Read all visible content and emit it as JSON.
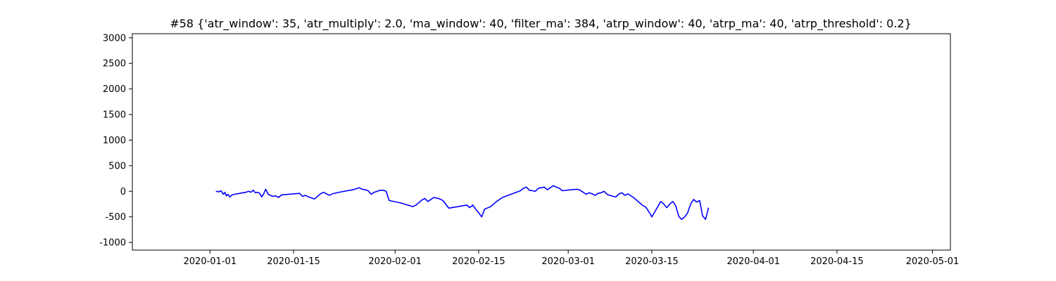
{
  "chart_data": {
    "type": "line",
    "title": "#58 {'atr_window': 35, 'atr_multiply': 2.0, 'ma_window': 40, 'filter_ma': 384, 'atrp_window': 40, 'atrp_ma': 40, 'atrp_threshold': 0.2}",
    "xlabel": "",
    "ylabel": "",
    "x_axis": "date",
    "xlim": [
      "2019-12-19",
      "2020-05-04"
    ],
    "ylim": [
      -1150,
      3080
    ],
    "x_ticks": [
      "2020-01-01",
      "2020-01-15",
      "2020-02-01",
      "2020-02-15",
      "2020-03-01",
      "2020-03-15",
      "2020-04-01",
      "2020-04-15",
      "2020-05-01"
    ],
    "y_ticks": [
      -1000,
      -500,
      0,
      500,
      1000,
      1500,
      2000,
      2500,
      3000
    ],
    "grid": false,
    "legend": "none",
    "series": [
      {
        "color": "#0000ff",
        "points": [
          [
            "2020-01-02T00:00",
            0
          ],
          [
            "2020-01-02T12:00",
            -10
          ],
          [
            "2020-01-02T20:00",
            10
          ],
          [
            "2020-01-03T06:00",
            -60
          ],
          [
            "2020-01-03T12:00",
            -20
          ],
          [
            "2020-01-03T18:00",
            -90
          ],
          [
            "2020-01-04T00:00",
            -60
          ],
          [
            "2020-01-04T08:00",
            -110
          ],
          [
            "2020-01-04T16:00",
            -70
          ],
          [
            "2020-01-06T00:00",
            -40
          ],
          [
            "2020-01-07T00:00",
            -20
          ],
          [
            "2020-01-07T12:00",
            0
          ],
          [
            "2020-01-07T20:00",
            -20
          ],
          [
            "2020-01-08T06:00",
            20
          ],
          [
            "2020-01-08T14:00",
            -30
          ],
          [
            "2020-01-09T00:00",
            -20
          ],
          [
            "2020-01-09T08:00",
            -40
          ],
          [
            "2020-01-09T16:00",
            -110
          ],
          [
            "2020-01-10T00:00",
            -50
          ],
          [
            "2020-01-10T08:00",
            40
          ],
          [
            "2020-01-10T18:00",
            -60
          ],
          [
            "2020-01-11T12:00",
            -100
          ],
          [
            "2020-01-12T00:00",
            -90
          ],
          [
            "2020-01-12T12:00",
            -120
          ],
          [
            "2020-01-13T00:00",
            -70
          ],
          [
            "2020-01-15T00:00",
            -50
          ],
          [
            "2020-01-16T00:00",
            -40
          ],
          [
            "2020-01-16T12:00",
            -100
          ],
          [
            "2020-01-17T00:00",
            -80
          ],
          [
            "2020-01-17T12:00",
            -110
          ],
          [
            "2020-01-18T12:00",
            -150
          ],
          [
            "2020-01-19T12:00",
            -50
          ],
          [
            "2020-01-20T00:00",
            -20
          ],
          [
            "2020-01-20T12:00",
            -50
          ],
          [
            "2020-01-21T00:00",
            -80
          ],
          [
            "2020-01-21T12:00",
            -50
          ],
          [
            "2020-01-23T00:00",
            -10
          ],
          [
            "2020-01-25T00:00",
            30
          ],
          [
            "2020-01-26T00:00",
            70
          ],
          [
            "2020-01-26T12:00",
            40
          ],
          [
            "2020-01-27T00:00",
            30
          ],
          [
            "2020-01-27T12:00",
            10
          ],
          [
            "2020-01-28T00:00",
            -60
          ],
          [
            "2020-01-28T12:00",
            -20
          ],
          [
            "2020-01-29T00:00",
            0
          ],
          [
            "2020-01-29T12:00",
            20
          ],
          [
            "2020-01-30T00:00",
            20
          ],
          [
            "2020-01-30T12:00",
            0
          ],
          [
            "2020-01-31T00:00",
            -180
          ],
          [
            "2020-02-02T00:00",
            -230
          ],
          [
            "2020-02-04T00:00",
            -300
          ],
          [
            "2020-02-04T12:00",
            -270
          ],
          [
            "2020-02-05T00:00",
            -220
          ],
          [
            "2020-02-05T12:00",
            -170
          ],
          [
            "2020-02-06T00:00",
            -140
          ],
          [
            "2020-02-06T12:00",
            -200
          ],
          [
            "2020-02-07T00:00",
            -160
          ],
          [
            "2020-02-07T12:00",
            -120
          ],
          [
            "2020-02-08T12:00",
            -150
          ],
          [
            "2020-02-09T00:00",
            -180
          ],
          [
            "2020-02-10T00:00",
            -330
          ],
          [
            "2020-02-13T00:00",
            -270
          ],
          [
            "2020-02-13T12:00",
            -320
          ],
          [
            "2020-02-14T00:00",
            -270
          ],
          [
            "2020-02-14T12:00",
            -350
          ],
          [
            "2020-02-15T00:00",
            -420
          ],
          [
            "2020-02-15T12:00",
            -500
          ],
          [
            "2020-02-16T00:00",
            -350
          ],
          [
            "2020-02-17T00:00",
            -300
          ],
          [
            "2020-02-18T00:00",
            -200
          ],
          [
            "2020-02-19T00:00",
            -120
          ],
          [
            "2020-02-22T00:00",
            10
          ],
          [
            "2020-02-22T12:00",
            60
          ],
          [
            "2020-02-23T00:00",
            80
          ],
          [
            "2020-02-23T12:00",
            20
          ],
          [
            "2020-02-24T00:00",
            10
          ],
          [
            "2020-02-24T12:00",
            0
          ],
          [
            "2020-02-25T00:00",
            60
          ],
          [
            "2020-02-26T00:00",
            80
          ],
          [
            "2020-02-26T12:00",
            30
          ],
          [
            "2020-02-27T00:00",
            70
          ],
          [
            "2020-02-27T12:00",
            110
          ],
          [
            "2020-02-28T00:00",
            80
          ],
          [
            "2020-02-28T12:00",
            60
          ],
          [
            "2020-02-29T00:00",
            10
          ],
          [
            "2020-03-01T12:00",
            30
          ],
          [
            "2020-03-02T12:00",
            40
          ],
          [
            "2020-03-03T00:00",
            20
          ],
          [
            "2020-03-03T12:00",
            -20
          ],
          [
            "2020-03-04T00:00",
            -60
          ],
          [
            "2020-03-04T12:00",
            -30
          ],
          [
            "2020-03-05T00:00",
            -50
          ],
          [
            "2020-03-05T12:00",
            -80
          ],
          [
            "2020-03-06T00:00",
            -40
          ],
          [
            "2020-03-06T12:00",
            -30
          ],
          [
            "2020-03-07T00:00",
            0
          ],
          [
            "2020-03-07T12:00",
            -60
          ],
          [
            "2020-03-08T00:00",
            -80
          ],
          [
            "2020-03-08T12:00",
            -100
          ],
          [
            "2020-03-09T00:00",
            -110
          ],
          [
            "2020-03-09T12:00",
            -50
          ],
          [
            "2020-03-10T00:00",
            -30
          ],
          [
            "2020-03-10T12:00",
            -80
          ],
          [
            "2020-03-11T00:00",
            -50
          ],
          [
            "2020-03-12T00:00",
            -130
          ],
          [
            "2020-03-12T12:00",
            -180
          ],
          [
            "2020-03-13T00:00",
            -230
          ],
          [
            "2020-03-13T12:00",
            -280
          ],
          [
            "2020-03-14T00:00",
            -310
          ],
          [
            "2020-03-14T12:00",
            -400
          ],
          [
            "2020-03-15T00:00",
            -500
          ],
          [
            "2020-03-15T12:00",
            -400
          ],
          [
            "2020-03-16T00:00",
            -300
          ],
          [
            "2020-03-16T12:00",
            -200
          ],
          [
            "2020-03-17T00:00",
            -250
          ],
          [
            "2020-03-17T12:00",
            -320
          ],
          [
            "2020-03-18T00:00",
            -250
          ],
          [
            "2020-03-18T12:00",
            -200
          ],
          [
            "2020-03-19T00:00",
            -280
          ],
          [
            "2020-03-19T12:00",
            -490
          ],
          [
            "2020-03-20T00:00",
            -550
          ],
          [
            "2020-03-20T12:00",
            -500
          ],
          [
            "2020-03-21T00:00",
            -420
          ],
          [
            "2020-03-21T12:00",
            -250
          ],
          [
            "2020-03-22T00:00",
            -160
          ],
          [
            "2020-03-22T12:00",
            -210
          ],
          [
            "2020-03-23T00:00",
            -180
          ],
          [
            "2020-03-23T12:00",
            -480
          ],
          [
            "2020-03-24T00:00",
            -550
          ],
          [
            "2020-03-24T12:00",
            -320
          ]
        ]
      }
    ]
  }
}
